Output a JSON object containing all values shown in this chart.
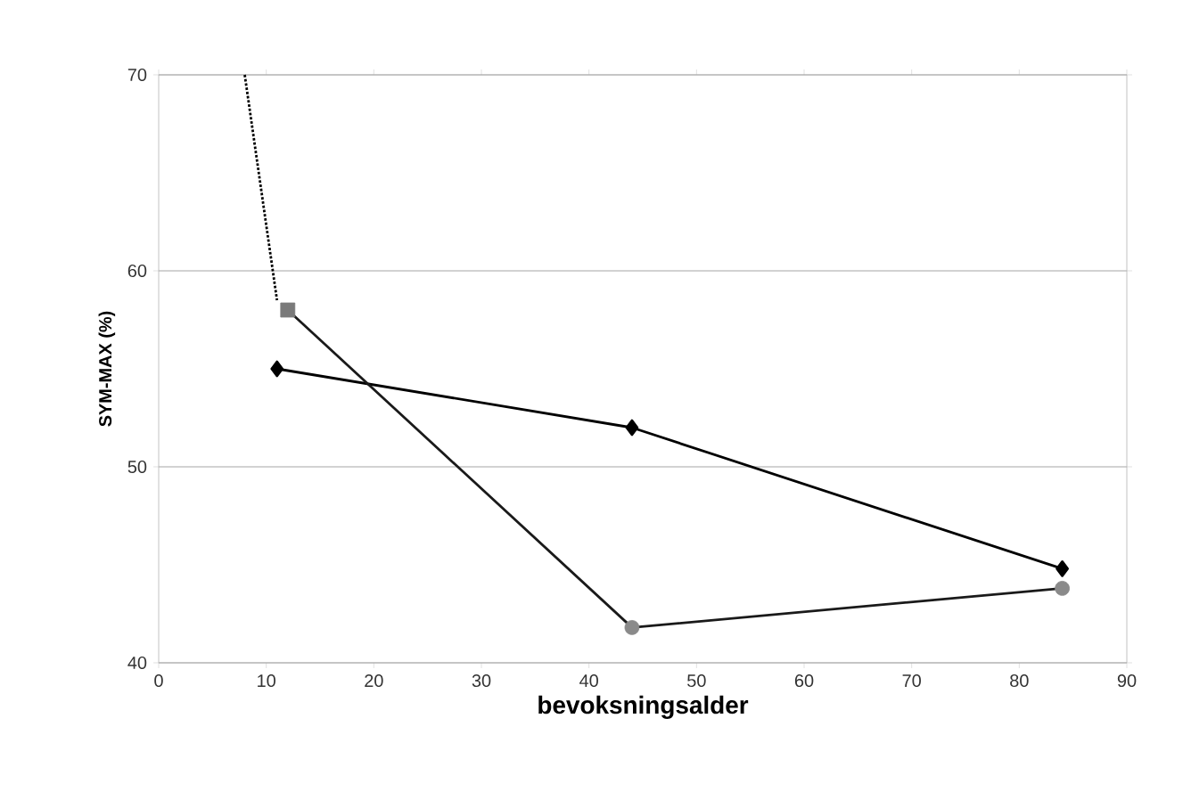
{
  "chart_data": {
    "type": "line",
    "xlabel": "bevoksningsalder",
    "ylabel": "SYM-MAX (%)",
    "xlim": [
      0,
      90
    ],
    "ylim": [
      40,
      70
    ],
    "xticks": [
      0,
      10,
      20,
      30,
      40,
      50,
      60,
      70,
      80,
      90
    ],
    "yticks": [
      40,
      50,
      60,
      70
    ],
    "grid": "y",
    "series": [
      {
        "color": "#000000",
        "marker": "diamond",
        "x": [
          11,
          44,
          84
        ],
        "values": [
          55,
          52,
          44.8
        ]
      },
      {
        "color": "#1a1a1a",
        "marker": "none",
        "x": [
          12,
          44,
          84
        ],
        "values": [
          58,
          41.8,
          43.8
        ]
      },
      {
        "type": "scatter",
        "color": "#8a8a8a",
        "marker": "circle",
        "x": [
          44,
          84
        ],
        "values": [
          41.8,
          43.8
        ]
      },
      {
        "type": "scatter",
        "color": "#7a7a7a",
        "marker": "square",
        "x": [
          12
        ],
        "values": [
          58
        ]
      },
      {
        "color": "#000000",
        "marker": "none",
        "line_style": "dotted",
        "x": [
          8,
          11
        ],
        "values": [
          70,
          58.5
        ]
      }
    ]
  }
}
